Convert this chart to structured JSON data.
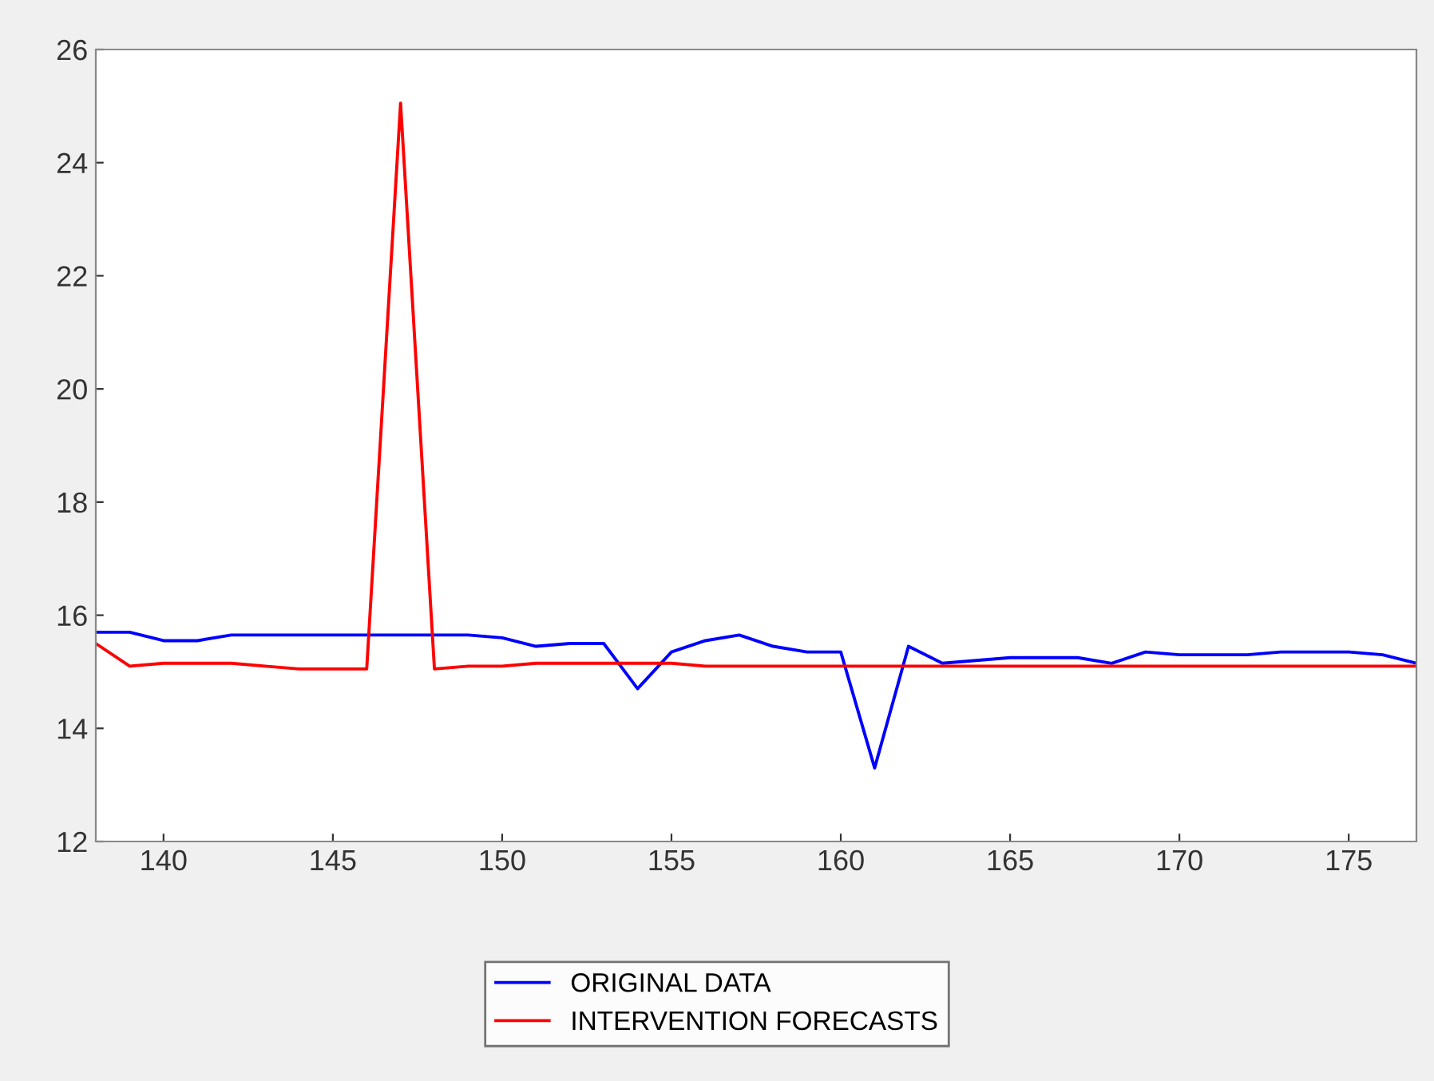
{
  "chart_data": {
    "type": "line",
    "x": [
      138,
      139,
      140,
      141,
      142,
      143,
      144,
      145,
      146,
      147,
      148,
      149,
      150,
      151,
      152,
      153,
      154,
      155,
      156,
      157,
      158,
      159,
      160,
      161,
      162,
      163,
      164,
      165,
      166,
      167,
      168,
      169,
      170,
      171,
      172,
      173,
      174,
      175,
      176,
      177
    ],
    "series": [
      {
        "name": "ORIGINAL DATA",
        "color": "#0000ff",
        "values": [
          15.7,
          15.7,
          15.55,
          15.55,
          15.65,
          15.65,
          15.65,
          15.65,
          15.65,
          15.65,
          15.65,
          15.65,
          15.6,
          15.45,
          15.5,
          15.5,
          14.7,
          15.35,
          15.55,
          15.65,
          15.45,
          15.35,
          15.35,
          13.3,
          15.45,
          15.15,
          15.2,
          15.25,
          15.25,
          15.25,
          15.15,
          15.35,
          15.3,
          15.3,
          15.3,
          15.35,
          15.35,
          15.35,
          15.3,
          15.15
        ]
      },
      {
        "name": "INTERVENTION FORECASTS",
        "color": "#ff0000",
        "values": [
          15.5,
          15.1,
          15.15,
          15.15,
          15.15,
          15.1,
          15.05,
          15.05,
          15.05,
          25.05,
          15.05,
          15.1,
          15.1,
          15.15,
          15.15,
          15.15,
          15.15,
          15.15,
          15.1,
          15.1,
          15.1,
          15.1,
          15.1,
          15.1,
          15.1,
          15.1,
          15.1,
          15.1,
          15.1,
          15.1,
          15.1,
          15.1,
          15.1,
          15.1,
          15.1,
          15.1,
          15.1,
          15.1,
          15.1,
          15.1
        ]
      }
    ],
    "xlim": [
      138,
      177
    ],
    "xticks": [
      140,
      145,
      150,
      155,
      160,
      165,
      170,
      175
    ],
    "ylim": [
      12,
      26
    ],
    "yticks": [
      12,
      14,
      16,
      18,
      20,
      22,
      24,
      26
    ],
    "grid": false,
    "legend": "bottom",
    "marker": "none",
    "line_style": "solid"
  }
}
